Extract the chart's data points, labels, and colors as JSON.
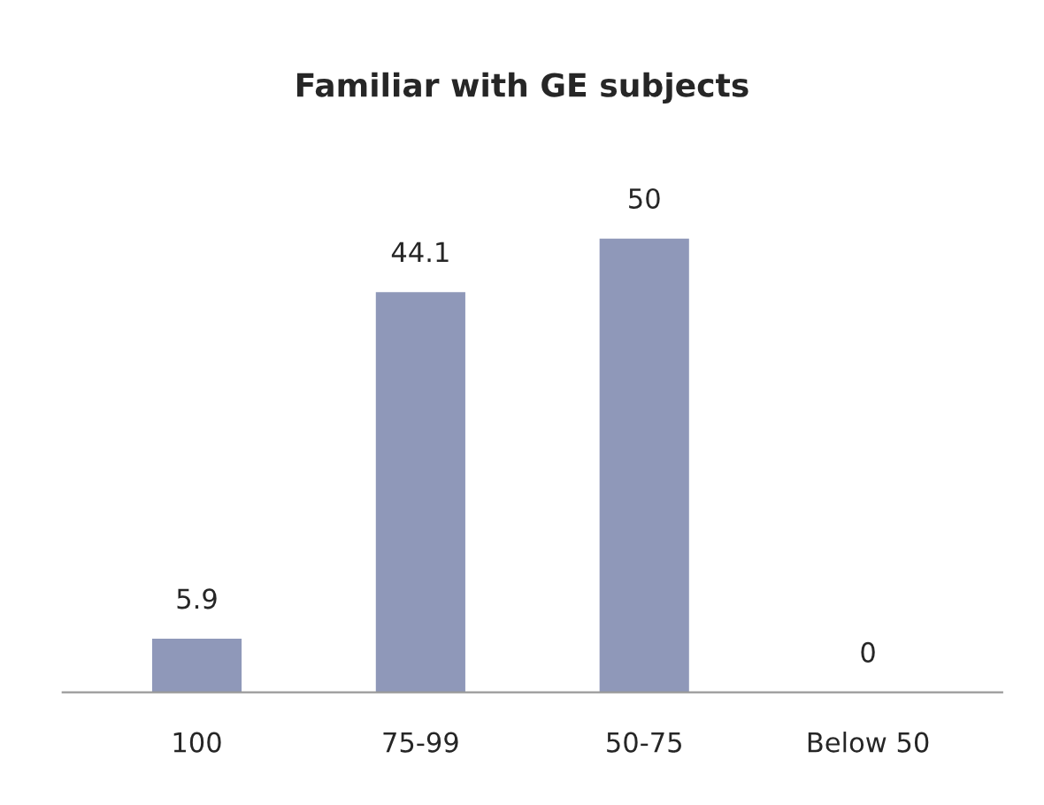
{
  "chart_data": {
    "type": "bar",
    "title": "Familiar with GE subjects",
    "categories": [
      "100",
      "75-99",
      "50-75",
      "Below 50"
    ],
    "values": [
      5.9,
      44.1,
      50,
      0
    ],
    "color": "#8f98b9",
    "data_labels": true
  }
}
